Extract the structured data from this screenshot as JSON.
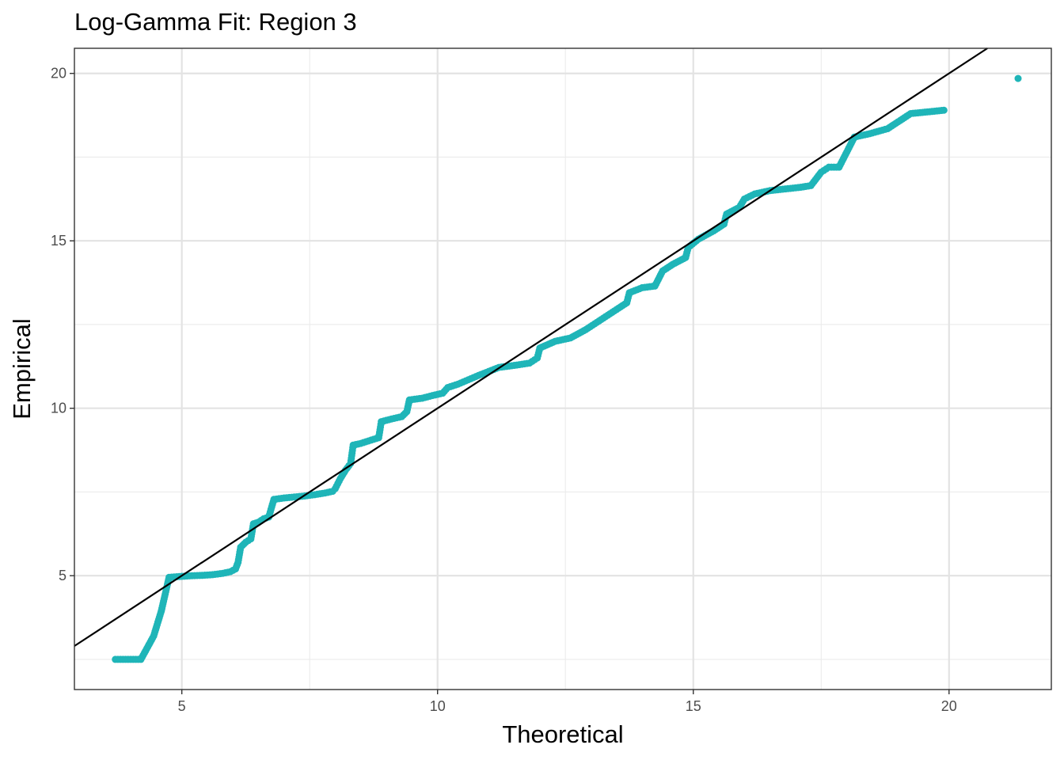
{
  "chart_data": {
    "type": "scatter",
    "title": "Log-Gamma Fit: Region 3",
    "xlabel": "Theoretical",
    "ylabel": "Empirical",
    "xlim": [
      2.9,
      22.0
    ],
    "ylim": [
      1.6,
      20.75
    ],
    "xticks": [
      5,
      10,
      15,
      20
    ],
    "yticks": [
      5,
      10,
      15,
      20
    ],
    "grid": true,
    "point_color": "#1fb5b8",
    "line_color": "#000000",
    "reference_line": {
      "intercept": 0,
      "slope": 1
    },
    "series": [
      {
        "points": [
          [
            3.7,
            2.5
          ],
          [
            4.2,
            2.5
          ],
          [
            4.45,
            3.2
          ],
          [
            4.6,
            3.95
          ],
          [
            4.75,
            4.95
          ],
          [
            4.9,
            4.97
          ],
          [
            5.0,
            4.98
          ],
          [
            5.2,
            5.0
          ],
          [
            5.4,
            5.01
          ],
          [
            5.6,
            5.03
          ],
          [
            5.8,
            5.07
          ],
          [
            5.95,
            5.12
          ],
          [
            6.05,
            5.2
          ],
          [
            6.1,
            5.4
          ],
          [
            6.15,
            5.85
          ],
          [
            6.25,
            6.0
          ],
          [
            6.35,
            6.1
          ],
          [
            6.4,
            6.55
          ],
          [
            6.5,
            6.6
          ],
          [
            6.6,
            6.7
          ],
          [
            6.7,
            6.75
          ],
          [
            6.8,
            7.28
          ],
          [
            7.0,
            7.32
          ],
          [
            7.2,
            7.35
          ],
          [
            7.4,
            7.38
          ],
          [
            7.6,
            7.42
          ],
          [
            7.8,
            7.47
          ],
          [
            7.95,
            7.52
          ],
          [
            8.0,
            7.6
          ],
          [
            8.1,
            7.9
          ],
          [
            8.2,
            8.15
          ],
          [
            8.3,
            8.35
          ],
          [
            8.35,
            8.9
          ],
          [
            8.5,
            8.95
          ],
          [
            8.7,
            9.05
          ],
          [
            8.85,
            9.12
          ],
          [
            8.9,
            9.6
          ],
          [
            9.1,
            9.68
          ],
          [
            9.3,
            9.75
          ],
          [
            9.4,
            9.9
          ],
          [
            9.45,
            10.25
          ],
          [
            9.7,
            10.3
          ],
          [
            9.9,
            10.38
          ],
          [
            10.1,
            10.45
          ],
          [
            10.2,
            10.62
          ],
          [
            10.4,
            10.72
          ],
          [
            10.6,
            10.85
          ],
          [
            10.8,
            10.98
          ],
          [
            11.0,
            11.1
          ],
          [
            11.2,
            11.22
          ],
          [
            11.5,
            11.28
          ],
          [
            11.8,
            11.35
          ],
          [
            11.95,
            11.5
          ],
          [
            12.0,
            11.8
          ],
          [
            12.3,
            12.0
          ],
          [
            12.6,
            12.1
          ],
          [
            12.9,
            12.35
          ],
          [
            13.2,
            12.65
          ],
          [
            13.5,
            12.95
          ],
          [
            13.7,
            13.15
          ],
          [
            13.75,
            13.45
          ],
          [
            14.0,
            13.6
          ],
          [
            14.25,
            13.65
          ],
          [
            14.4,
            14.1
          ],
          [
            14.6,
            14.3
          ],
          [
            14.85,
            14.5
          ],
          [
            14.9,
            14.8
          ],
          [
            15.1,
            15.05
          ],
          [
            15.4,
            15.3
          ],
          [
            15.6,
            15.5
          ],
          [
            15.65,
            15.8
          ],
          [
            15.9,
            16.0
          ],
          [
            16.0,
            16.25
          ],
          [
            16.2,
            16.4
          ],
          [
            16.5,
            16.5
          ],
          [
            16.8,
            16.55
          ],
          [
            17.1,
            16.6
          ],
          [
            17.3,
            16.65
          ],
          [
            17.5,
            17.05
          ],
          [
            17.65,
            17.2
          ],
          [
            17.85,
            17.2
          ],
          [
            18.15,
            18.1
          ],
          [
            18.45,
            18.2
          ],
          [
            18.8,
            18.35
          ],
          [
            19.25,
            18.8
          ],
          [
            19.9,
            18.9
          ],
          [
            21.35,
            19.85
          ]
        ]
      }
    ]
  }
}
